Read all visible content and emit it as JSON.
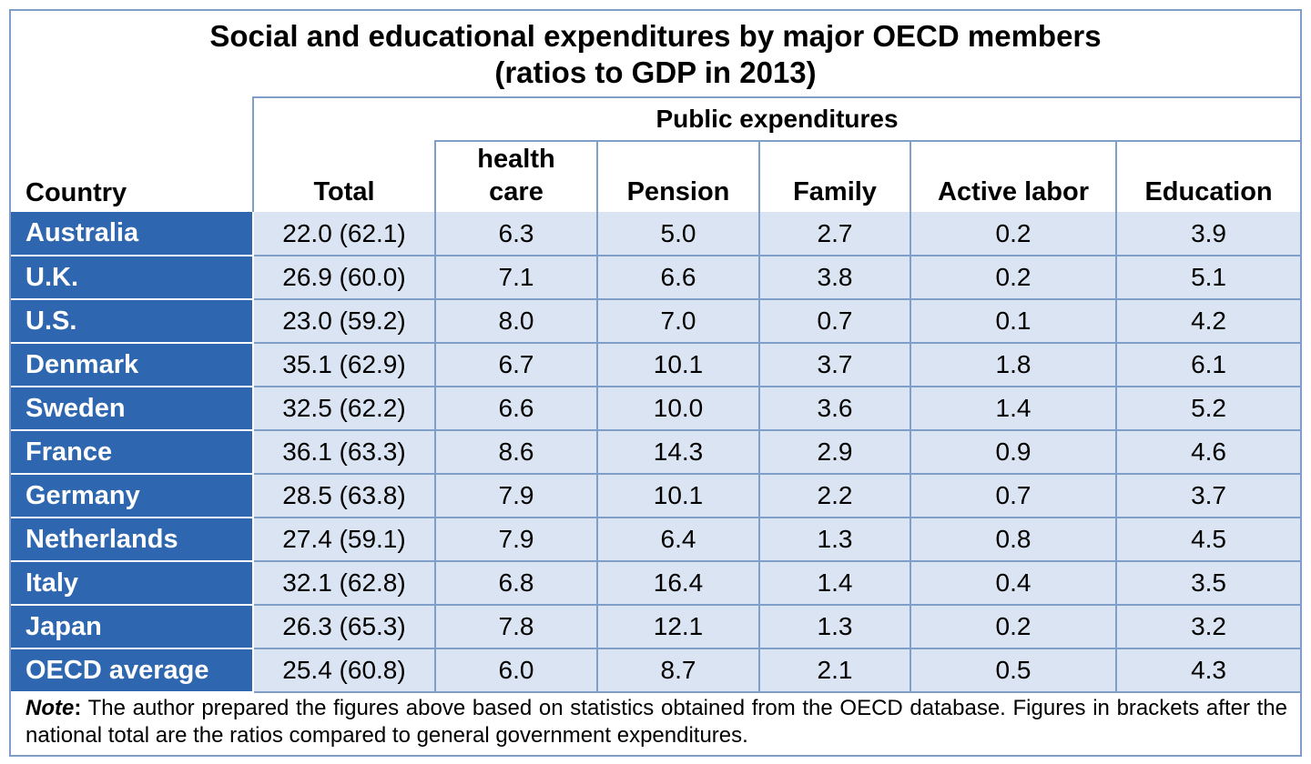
{
  "title": {
    "line1": "Social and educational expenditures by major OECD members",
    "line2": "(ratios to GDP in 2013)"
  },
  "header": {
    "group_label": "Public expenditures",
    "country": "Country",
    "columns": {
      "total": "Total",
      "health_line1": "health",
      "health_line2": "care",
      "pension": "Pension",
      "family": "Family",
      "active_labor": "Active labor",
      "education": "Education"
    }
  },
  "rows": [
    {
      "country": "Australia",
      "total": "22.0 (62.1)",
      "health": "6.3",
      "pension": "5.0",
      "family": "2.7",
      "active_labor": "0.2",
      "education": "3.9"
    },
    {
      "country": "U.K.",
      "total": "26.9 (60.0)",
      "health": "7.1",
      "pension": "6.6",
      "family": "3.8",
      "active_labor": "0.2",
      "education": "5.1"
    },
    {
      "country": "U.S.",
      "total": "23.0 (59.2)",
      "health": "8.0",
      "pension": "7.0",
      "family": "0.7",
      "active_labor": "0.1",
      "education": "4.2"
    },
    {
      "country": "Denmark",
      "total": "35.1 (62.9)",
      "health": "6.7",
      "pension": "10.1",
      "family": "3.7",
      "active_labor": "1.8",
      "education": "6.1"
    },
    {
      "country": "Sweden",
      "total": "32.5 (62.2)",
      "health": "6.6",
      "pension": "10.0",
      "family": "3.6",
      "active_labor": "1.4",
      "education": "5.2"
    },
    {
      "country": "France",
      "total": "36.1 (63.3)",
      "health": "8.6",
      "pension": "14.3",
      "family": "2.9",
      "active_labor": "0.9",
      "education": "4.6"
    },
    {
      "country": "Germany",
      "total": "28.5 (63.8)",
      "health": "7.9",
      "pension": "10.1",
      "family": "2.2",
      "active_labor": "0.7",
      "education": "3.7"
    },
    {
      "country": "Netherlands",
      "total": "27.4 (59.1)",
      "health": "7.9",
      "pension": "6.4",
      "family": "1.3",
      "active_labor": "0.8",
      "education": "4.5"
    },
    {
      "country": "Italy",
      "total": "32.1 (62.8)",
      "health": "6.8",
      "pension": "16.4",
      "family": "1.4",
      "active_labor": "0.4",
      "education": "3.5"
    },
    {
      "country": "Japan",
      "total": "26.3 (65.3)",
      "health": "7.8",
      "pension": "12.1",
      "family": "1.3",
      "active_labor": "0.2",
      "education": "3.2"
    },
    {
      "country": "OECD average",
      "total": "25.4 (60.8)",
      "health": "6.0",
      "pension": "8.7",
      "family": "2.1",
      "active_labor": "0.5",
      "education": "4.3"
    }
  ],
  "note": {
    "label": "Note",
    "colon": ":",
    "text": " The author prepared the figures above based on statistics obtained from the OECD database. Figures in brackets after the national total are the ratios compared to general government expenditures."
  },
  "colors": {
    "country_fill": "#2e67b0",
    "cell_fill": "#dbe4f3",
    "border": "#7f9fc8"
  }
}
